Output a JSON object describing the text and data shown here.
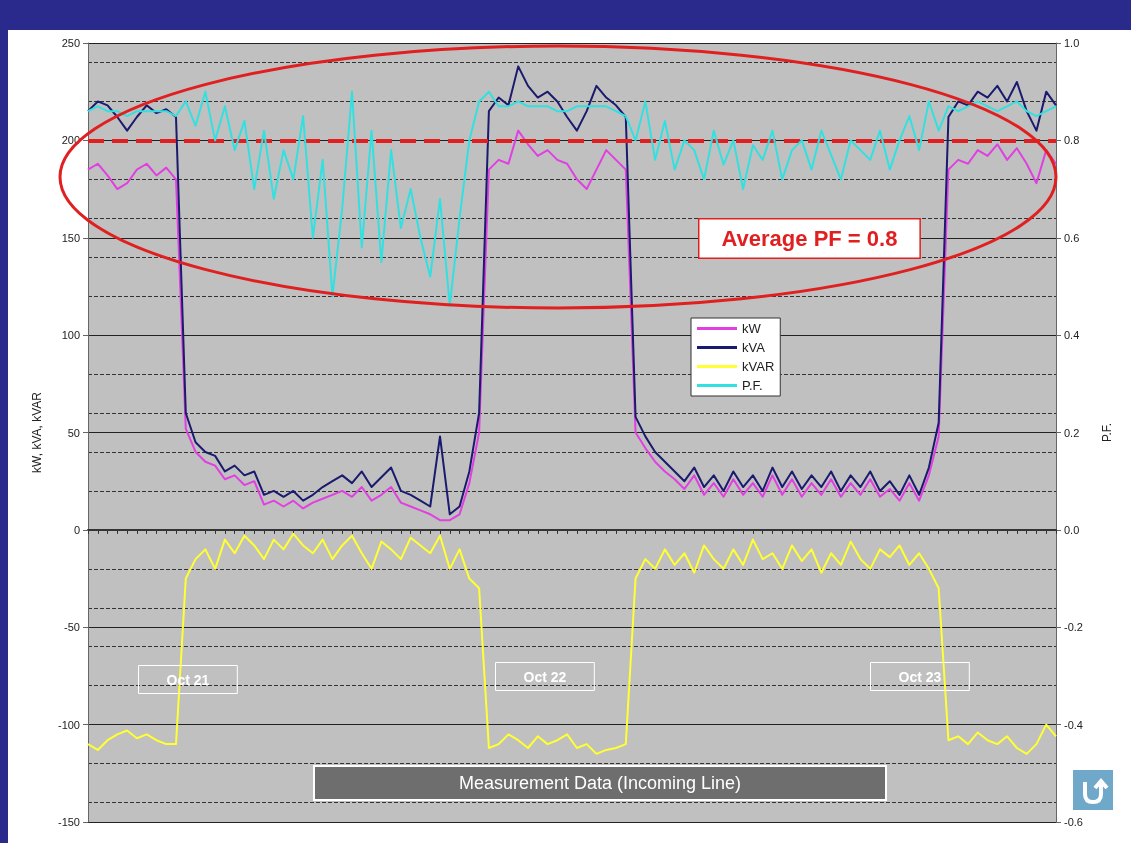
{
  "chart_data": {
    "type": "line",
    "ylabel": "kW, kVA, kVAR",
    "y2label": "P.F.",
    "categories": [
      null,
      null,
      null,
      null,
      null,
      null,
      null,
      null,
      null,
      null,
      null,
      null,
      null,
      null,
      null,
      null,
      null,
      null,
      null,
      null,
      null,
      null,
      null,
      null,
      null,
      null,
      null,
      null,
      null,
      null,
      null,
      null,
      null,
      null,
      null,
      null,
      null,
      null,
      null,
      null,
      null,
      null,
      null,
      null,
      null,
      null,
      null,
      null,
      null,
      null,
      null,
      null,
      null,
      null,
      null,
      null,
      null,
      null,
      null,
      null,
      null,
      null,
      null,
      null,
      null,
      null,
      null,
      null,
      null,
      null,
      null,
      null,
      null,
      null,
      null,
      null,
      null,
      null,
      null,
      null,
      null,
      null,
      null,
      null,
      null,
      null,
      null,
      null,
      null,
      null,
      null,
      null,
      null,
      null,
      null,
      null,
      null,
      null,
      null,
      null
    ],
    "series": [
      {
        "name": "kW",
        "color": "#e040e0",
        "values": [
          185,
          188,
          182,
          175,
          178,
          185,
          188,
          182,
          186,
          180,
          52,
          40,
          35,
          33,
          26,
          28,
          23,
          25,
          13,
          15,
          12,
          15,
          11,
          14,
          16,
          18,
          20,
          17,
          22,
          15,
          18,
          22,
          14,
          12,
          10,
          8,
          5,
          5,
          8,
          24,
          50,
          185,
          190,
          188,
          205,
          198,
          192,
          195,
          190,
          188,
          180,
          175,
          185,
          195,
          190,
          185,
          50,
          42,
          35,
          30,
          26,
          21,
          28,
          18,
          24,
          17,
          26,
          18,
          24,
          17,
          28,
          18,
          26,
          17,
          24,
          18,
          26,
          17,
          24,
          18,
          26,
          17,
          21,
          15,
          24,
          15,
          28,
          48,
          185,
          190,
          188,
          195,
          192,
          198,
          190,
          196,
          188,
          178,
          195,
          188
        ]
      },
      {
        "name": "kVA",
        "color": "#1a1a6e",
        "values": [
          215,
          220,
          218,
          212,
          205,
          212,
          218,
          214,
          216,
          212,
          60,
          45,
          40,
          38,
          30,
          33,
          28,
          30,
          18,
          20,
          17,
          20,
          15,
          18,
          22,
          25,
          28,
          24,
          30,
          22,
          27,
          32,
          20,
          18,
          15,
          12,
          48,
          8,
          12,
          30,
          60,
          215,
          222,
          218,
          238,
          228,
          222,
          225,
          220,
          212,
          205,
          215,
          228,
          222,
          218,
          212,
          58,
          48,
          40,
          35,
          30,
          25,
          32,
          22,
          28,
          20,
          30,
          22,
          28,
          20,
          32,
          22,
          30,
          21,
          28,
          22,
          30,
          20,
          28,
          22,
          30,
          20,
          25,
          18,
          28,
          18,
          32,
          55,
          212,
          220,
          218,
          225,
          222,
          228,
          220,
          230,
          215,
          205,
          225,
          218
        ]
      },
      {
        "name": "kVAR",
        "color": "#ffff33",
        "values": [
          -110,
          -113,
          -108,
          -105,
          -103,
          -107,
          -105,
          -108,
          -110,
          -110,
          -25,
          -15,
          -10,
          -20,
          -5,
          -12,
          -3,
          -8,
          -15,
          -5,
          -10,
          -2,
          -8,
          -12,
          -5,
          -15,
          -8,
          -3,
          -12,
          -20,
          -6,
          -10,
          -15,
          -4,
          -8,
          -12,
          -3,
          -20,
          -10,
          -25,
          -30,
          -112,
          -110,
          -105,
          -108,
          -112,
          -106,
          -110,
          -108,
          -105,
          -112,
          -110,
          -115,
          -113,
          -112,
          -110,
          -25,
          -15,
          -20,
          -10,
          -18,
          -12,
          -22,
          -8,
          -15,
          -20,
          -10,
          -18,
          -5,
          -15,
          -12,
          -20,
          -8,
          -16,
          -10,
          -22,
          -12,
          -18,
          -6,
          -15,
          -20,
          -10,
          -14,
          -8,
          -18,
          -12,
          -20,
          -30,
          -108,
          -106,
          -110,
          -104,
          -108,
          -110,
          -106,
          -112,
          -115,
          -110,
          -100,
          -106
        ]
      },
      {
        "name": "P.F.",
        "color": "#33e0e0",
        "axis": "y2",
        "values": [
          0.86,
          0.87,
          0.86,
          0.86,
          0.85,
          0.86,
          0.86,
          0.86,
          0.86,
          0.85,
          0.88,
          0.83,
          0.9,
          0.8,
          0.87,
          0.78,
          0.84,
          0.7,
          0.82,
          0.68,
          0.78,
          0.72,
          0.85,
          0.6,
          0.76,
          0.48,
          0.66,
          0.9,
          0.58,
          0.82,
          0.55,
          0.78,
          0.62,
          0.7,
          0.6,
          0.52,
          0.68,
          0.46,
          0.64,
          0.8,
          0.88,
          0.9,
          0.87,
          0.87,
          0.88,
          0.87,
          0.87,
          0.87,
          0.86,
          0.86,
          0.87,
          0.87,
          0.87,
          0.87,
          0.86,
          0.85,
          0.8,
          0.88,
          0.76,
          0.84,
          0.74,
          0.8,
          0.78,
          0.72,
          0.82,
          0.75,
          0.8,
          0.7,
          0.79,
          0.76,
          0.82,
          0.72,
          0.78,
          0.8,
          0.74,
          0.82,
          0.77,
          0.72,
          0.8,
          0.78,
          0.76,
          0.82,
          0.74,
          0.8,
          0.85,
          0.78,
          0.88,
          0.82,
          0.87,
          0.86,
          0.87,
          0.88,
          0.87,
          0.86,
          0.87,
          0.88,
          0.86,
          0.85,
          0.86,
          0.87
        ]
      }
    ],
    "ylim": [
      -150,
      250
    ],
    "yticks": [
      -150,
      -100,
      -50,
      0,
      50,
      100,
      150,
      200,
      250
    ],
    "y2lim": [
      -0.6,
      1.0
    ],
    "y2ticks": [
      {
        "value": -0.6,
        "label": "-0.6"
      },
      {
        "value": -0.4,
        "label": "-0.4"
      },
      {
        "value": -0.2,
        "label": "-0.2"
      },
      {
        "value": 0,
        "label": "0.0"
      },
      {
        "value": 0.2,
        "label": "0.2"
      },
      {
        "value": 0.4,
        "label": "0.4"
      },
      {
        "value": 0.6,
        "label": "0.6"
      },
      {
        "value": 0.8,
        "label": "0.8"
      },
      {
        "value": 1.0,
        "label": "1.0"
      }
    ],
    "ref_lines": [
      {
        "axis": "y2",
        "value": 0.8,
        "label": "Average PF = 0.8",
        "color": "#e02020",
        "line_style": "dashed"
      }
    ],
    "annotations": [
      "Oct 21",
      "Oct 22",
      "Oct 23",
      "Measurement Data (Incoming Line)"
    ],
    "grid": "y",
    "legend": "center",
    "marker": "none",
    "line_style": "solid"
  }
}
